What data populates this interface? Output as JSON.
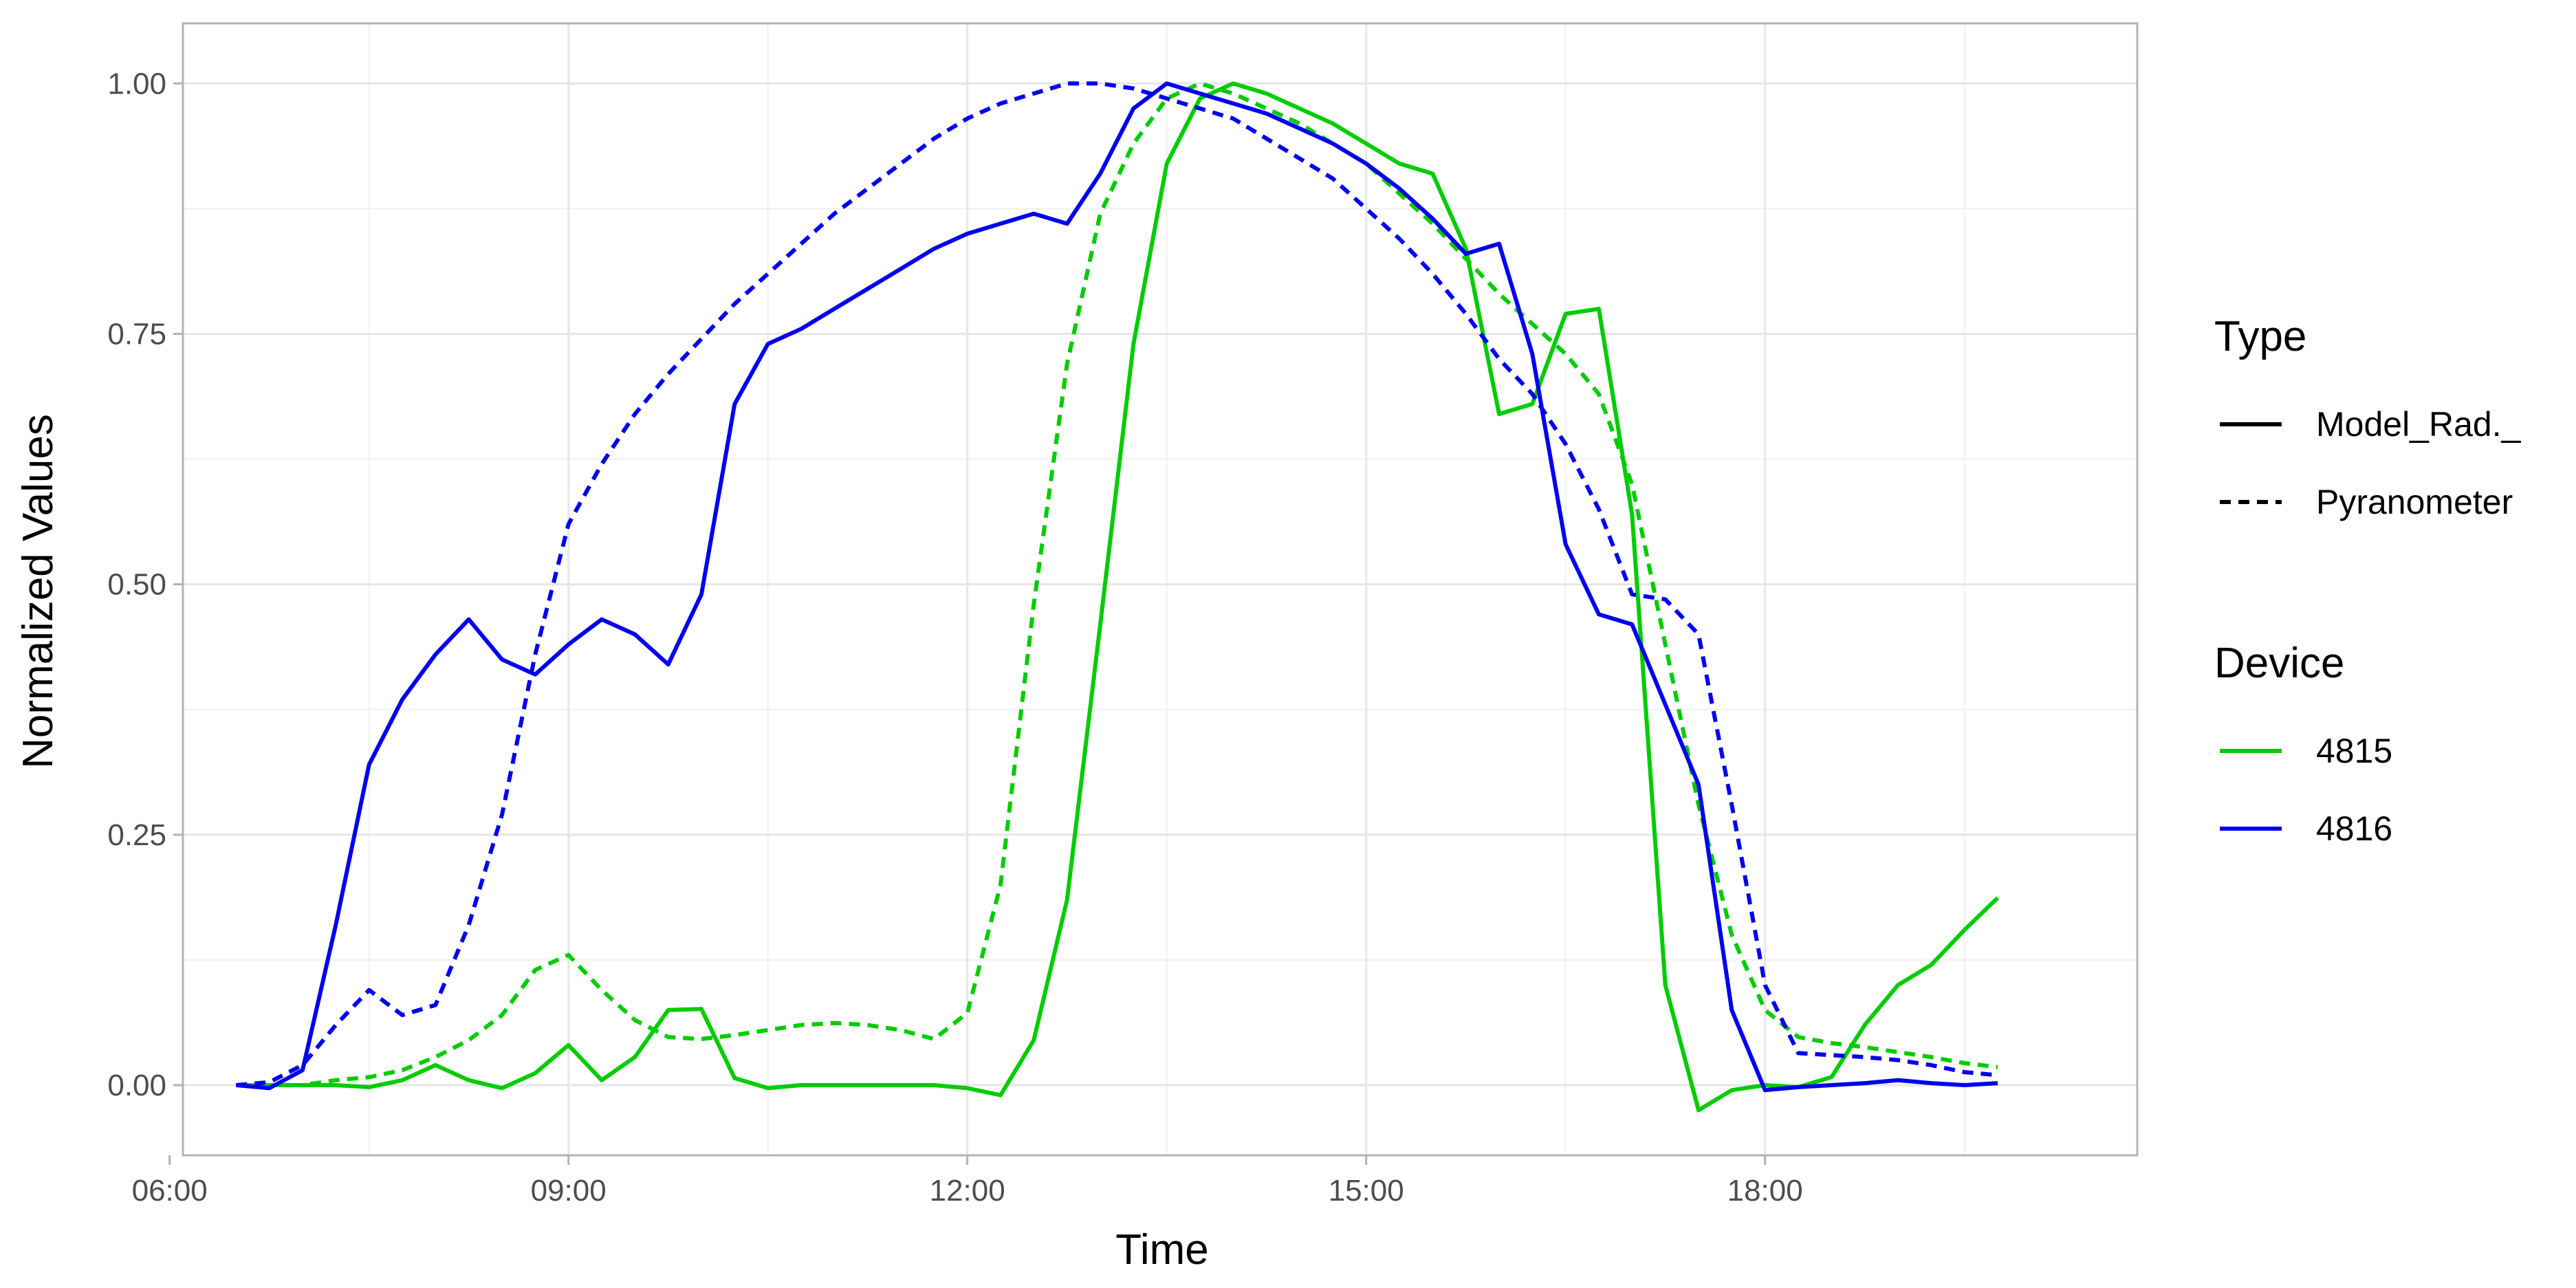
{
  "chart_data": {
    "type": "line",
    "title": "",
    "xlabel": "Time",
    "ylabel": "Normalized Values",
    "x_unit": "time of day (hours)",
    "xlim": [
      6.1,
      20.8
    ],
    "ylim": [
      -0.07,
      1.06
    ],
    "x_ticks": [
      {
        "value": 6,
        "label": "06:00"
      },
      {
        "value": 9,
        "label": "09:00"
      },
      {
        "value": 12,
        "label": "12:00"
      },
      {
        "value": 15,
        "label": "15:00"
      },
      {
        "value": 18,
        "label": "18:00"
      }
    ],
    "y_ticks": [
      {
        "value": 0,
        "label": "0.00"
      },
      {
        "value": 0.25,
        "label": "0.25"
      },
      {
        "value": 0.5,
        "label": "0.50"
      },
      {
        "value": 0.75,
        "label": "0.75"
      },
      {
        "value": 1.0,
        "label": "1.00"
      }
    ],
    "grid": true,
    "legends": [
      {
        "title": "Type",
        "entries": [
          {
            "label": "Model_Rad._",
            "linetype": "solid"
          },
          {
            "label": "Pyranometer",
            "linetype": "dashed"
          }
        ]
      },
      {
        "title": "Device",
        "entries": [
          {
            "label": "4815",
            "color": "#00cc00"
          },
          {
            "label": "4816",
            "color": "#0000ee"
          }
        ]
      }
    ],
    "legend_position": "right",
    "series": [
      {
        "device": "4815",
        "type": "Model_Rad._",
        "color": "#00cc00",
        "linetype": "solid",
        "points": [
          [
            6.5,
            0.0
          ],
          [
            6.75,
            0.0
          ],
          [
            7.0,
            0.0
          ],
          [
            7.25,
            0.0
          ],
          [
            7.5,
            -0.002
          ],
          [
            7.75,
            0.005
          ],
          [
            8.0,
            0.02
          ],
          [
            8.25,
            0.005
          ],
          [
            8.5,
            -0.003
          ],
          [
            8.75,
            0.012
          ],
          [
            9.0,
            0.04
          ],
          [
            9.25,
            0.005
          ],
          [
            9.5,
            0.028
          ],
          [
            9.75,
            0.075
          ],
          [
            10.0,
            0.076
          ],
          [
            10.25,
            0.007
          ],
          [
            10.5,
            -0.003
          ],
          [
            10.75,
            0.0
          ],
          [
            11.0,
            0.0
          ],
          [
            11.25,
            0.0
          ],
          [
            11.5,
            0.0
          ],
          [
            11.75,
            0.0
          ],
          [
            12.0,
            -0.003
          ],
          [
            12.25,
            -0.01
          ],
          [
            12.5,
            0.045
          ],
          [
            12.75,
            0.185
          ],
          [
            13.0,
            0.46
          ],
          [
            13.25,
            0.74
          ],
          [
            13.5,
            0.92
          ],
          [
            13.75,
            0.985
          ],
          [
            14.0,
            1.0
          ],
          [
            14.25,
            0.99
          ],
          [
            14.5,
            0.975
          ],
          [
            14.75,
            0.96
          ],
          [
            15.0,
            0.94
          ],
          [
            15.25,
            0.92
          ],
          [
            15.5,
            0.91
          ],
          [
            15.75,
            0.835
          ],
          [
            16.0,
            0.67
          ],
          [
            16.25,
            0.68
          ],
          [
            16.5,
            0.77
          ],
          [
            16.75,
            0.775
          ],
          [
            17.0,
            0.57
          ],
          [
            17.25,
            0.1
          ],
          [
            17.5,
            -0.025
          ],
          [
            17.75,
            -0.005
          ],
          [
            18.0,
            0.0
          ],
          [
            18.25,
            -0.002
          ],
          [
            18.5,
            0.008
          ],
          [
            18.75,
            0.06
          ],
          [
            19.0,
            0.1
          ],
          [
            19.25,
            0.12
          ],
          [
            19.5,
            0.155
          ],
          [
            19.75,
            0.187
          ]
        ]
      },
      {
        "device": "4815",
        "type": "Pyranometer",
        "color": "#00cc00",
        "linetype": "dashed",
        "points": [
          [
            6.5,
            0.0
          ],
          [
            6.75,
            0.0
          ],
          [
            7.0,
            0.0
          ],
          [
            7.25,
            0.005
          ],
          [
            7.5,
            0.008
          ],
          [
            7.75,
            0.015
          ],
          [
            8.0,
            0.028
          ],
          [
            8.25,
            0.045
          ],
          [
            8.5,
            0.07
          ],
          [
            8.75,
            0.115
          ],
          [
            9.0,
            0.13
          ],
          [
            9.25,
            0.095
          ],
          [
            9.5,
            0.065
          ],
          [
            9.75,
            0.048
          ],
          [
            10.0,
            0.046
          ],
          [
            10.25,
            0.05
          ],
          [
            10.5,
            0.055
          ],
          [
            10.75,
            0.06
          ],
          [
            11.0,
            0.062
          ],
          [
            11.25,
            0.06
          ],
          [
            11.5,
            0.055
          ],
          [
            11.75,
            0.046
          ],
          [
            12.0,
            0.072
          ],
          [
            12.25,
            0.2
          ],
          [
            12.5,
            0.48
          ],
          [
            12.75,
            0.72
          ],
          [
            13.0,
            0.87
          ],
          [
            13.25,
            0.94
          ],
          [
            13.5,
            0.985
          ],
          [
            13.75,
            1.0
          ],
          [
            14.0,
            0.99
          ],
          [
            14.25,
            0.975
          ],
          [
            14.5,
            0.96
          ],
          [
            14.75,
            0.94
          ],
          [
            15.0,
            0.92
          ],
          [
            15.25,
            0.89
          ],
          [
            15.5,
            0.86
          ],
          [
            15.75,
            0.825
          ],
          [
            16.0,
            0.79
          ],
          [
            16.25,
            0.76
          ],
          [
            16.5,
            0.73
          ],
          [
            16.75,
            0.69
          ],
          [
            17.0,
            0.6
          ],
          [
            17.25,
            0.44
          ],
          [
            17.5,
            0.28
          ],
          [
            17.75,
            0.15
          ],
          [
            18.0,
            0.075
          ],
          [
            18.25,
            0.048
          ],
          [
            18.5,
            0.042
          ],
          [
            18.75,
            0.038
          ],
          [
            19.0,
            0.033
          ],
          [
            19.25,
            0.028
          ],
          [
            19.5,
            0.022
          ],
          [
            19.75,
            0.018
          ]
        ]
      },
      {
        "device": "4816",
        "type": "Model_Rad._",
        "color": "#0000ee",
        "linetype": "solid",
        "points": [
          [
            6.5,
            0.0
          ],
          [
            6.75,
            -0.003
          ],
          [
            7.0,
            0.015
          ],
          [
            7.25,
            0.16
          ],
          [
            7.5,
            0.32
          ],
          [
            7.75,
            0.385
          ],
          [
            8.0,
            0.43
          ],
          [
            8.25,
            0.465
          ],
          [
            8.5,
            0.425
          ],
          [
            8.75,
            0.41
          ],
          [
            9.0,
            0.44
          ],
          [
            9.25,
            0.465
          ],
          [
            9.5,
            0.45
          ],
          [
            9.75,
            0.42
          ],
          [
            10.0,
            0.49
          ],
          [
            10.25,
            0.68
          ],
          [
            10.5,
            0.74
          ],
          [
            10.75,
            0.755
          ],
          [
            11.0,
            0.775
          ],
          [
            11.25,
            0.795
          ],
          [
            11.5,
            0.815
          ],
          [
            11.75,
            0.835
          ],
          [
            12.0,
            0.85
          ],
          [
            12.25,
            0.86
          ],
          [
            12.5,
            0.87
          ],
          [
            12.75,
            0.86
          ],
          [
            13.0,
            0.91
          ],
          [
            13.25,
            0.975
          ],
          [
            13.5,
            1.0
          ],
          [
            13.75,
            0.99
          ],
          [
            14.0,
            0.98
          ],
          [
            14.25,
            0.97
          ],
          [
            14.5,
            0.955
          ],
          [
            14.75,
            0.94
          ],
          [
            15.0,
            0.92
          ],
          [
            15.25,
            0.895
          ],
          [
            15.5,
            0.865
          ],
          [
            15.75,
            0.83
          ],
          [
            16.0,
            0.84
          ],
          [
            16.25,
            0.73
          ],
          [
            16.5,
            0.54
          ],
          [
            16.75,
            0.47
          ],
          [
            17.0,
            0.46
          ],
          [
            17.25,
            0.38
          ],
          [
            17.5,
            0.3
          ],
          [
            17.75,
            0.075
          ],
          [
            18.0,
            -0.005
          ],
          [
            18.25,
            -0.002
          ],
          [
            18.5,
            0.0
          ],
          [
            18.75,
            0.002
          ],
          [
            19.0,
            0.005
          ],
          [
            19.25,
            0.002
          ],
          [
            19.5,
            0.0
          ],
          [
            19.75,
            0.002
          ]
        ]
      },
      {
        "device": "4816",
        "type": "Pyranometer",
        "color": "#0000ee",
        "linetype": "dashed",
        "points": [
          [
            6.5,
            0.0
          ],
          [
            6.75,
            0.003
          ],
          [
            7.0,
            0.02
          ],
          [
            7.25,
            0.06
          ],
          [
            7.5,
            0.095
          ],
          [
            7.75,
            0.07
          ],
          [
            8.0,
            0.08
          ],
          [
            8.25,
            0.16
          ],
          [
            8.5,
            0.27
          ],
          [
            8.75,
            0.43
          ],
          [
            9.0,
            0.56
          ],
          [
            9.25,
            0.62
          ],
          [
            9.5,
            0.67
          ],
          [
            9.75,
            0.71
          ],
          [
            10.0,
            0.745
          ],
          [
            10.25,
            0.78
          ],
          [
            10.5,
            0.81
          ],
          [
            10.75,
            0.84
          ],
          [
            11.0,
            0.87
          ],
          [
            11.25,
            0.895
          ],
          [
            11.5,
            0.92
          ],
          [
            11.75,
            0.945
          ],
          [
            12.0,
            0.965
          ],
          [
            12.25,
            0.98
          ],
          [
            12.5,
            0.99
          ],
          [
            12.75,
            1.0
          ],
          [
            13.0,
            1.0
          ],
          [
            13.25,
            0.995
          ],
          [
            13.5,
            0.985
          ],
          [
            13.75,
            0.975
          ],
          [
            14.0,
            0.965
          ],
          [
            14.25,
            0.945
          ],
          [
            14.5,
            0.925
          ],
          [
            14.75,
            0.905
          ],
          [
            15.0,
            0.875
          ],
          [
            15.25,
            0.845
          ],
          [
            15.5,
            0.81
          ],
          [
            15.75,
            0.77
          ],
          [
            16.0,
            0.725
          ],
          [
            16.25,
            0.69
          ],
          [
            16.5,
            0.64
          ],
          [
            16.75,
            0.575
          ],
          [
            17.0,
            0.49
          ],
          [
            17.25,
            0.485
          ],
          [
            17.5,
            0.45
          ],
          [
            17.75,
            0.28
          ],
          [
            18.0,
            0.1
          ],
          [
            18.25,
            0.032
          ],
          [
            18.5,
            0.03
          ],
          [
            18.75,
            0.028
          ],
          [
            19.0,
            0.025
          ],
          [
            19.25,
            0.02
          ],
          [
            19.5,
            0.013
          ],
          [
            19.75,
            0.01
          ]
        ]
      }
    ]
  }
}
